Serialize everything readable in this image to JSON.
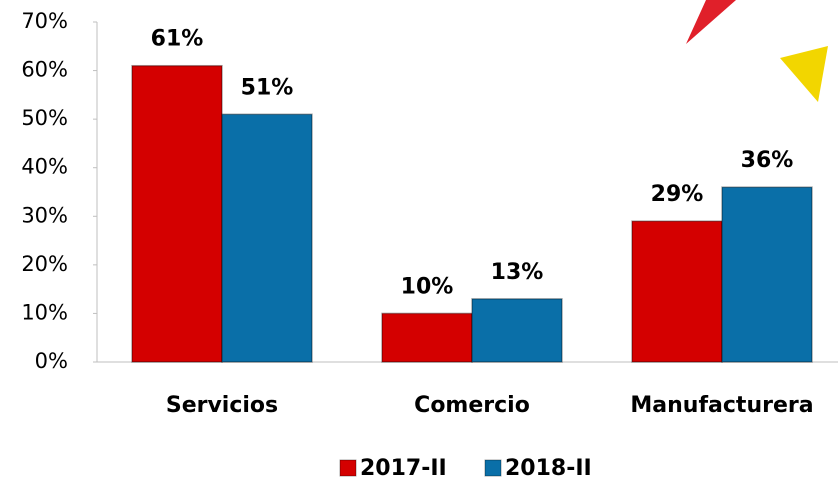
{
  "chart_data": {
    "type": "bar",
    "categories": [
      "Servicios",
      "Comercio",
      "Manufacturera"
    ],
    "series": [
      {
        "name": "2017-II",
        "color": "#d40000",
        "values": [
          61,
          10,
          29
        ],
        "value_labels": [
          "61%",
          "10%",
          "29%"
        ]
      },
      {
        "name": "2018-II",
        "color": "#0a6fa8",
        "values": [
          51,
          13,
          36
        ],
        "value_labels": [
          "51%",
          "13%",
          "36%"
        ]
      }
    ],
    "ylim": [
      0,
      70
    ],
    "yticks": [
      {
        "value": 0,
        "label": "0%"
      },
      {
        "value": 10,
        "label": "10%"
      },
      {
        "value": 20,
        "label": "20%"
      },
      {
        "value": 30,
        "label": "30%"
      },
      {
        "value": 40,
        "label": "40%"
      },
      {
        "value": 50,
        "label": "50%"
      },
      {
        "value": 60,
        "label": "60%"
      },
      {
        "value": 70,
        "label": "70%"
      }
    ],
    "legend": "bottom"
  }
}
